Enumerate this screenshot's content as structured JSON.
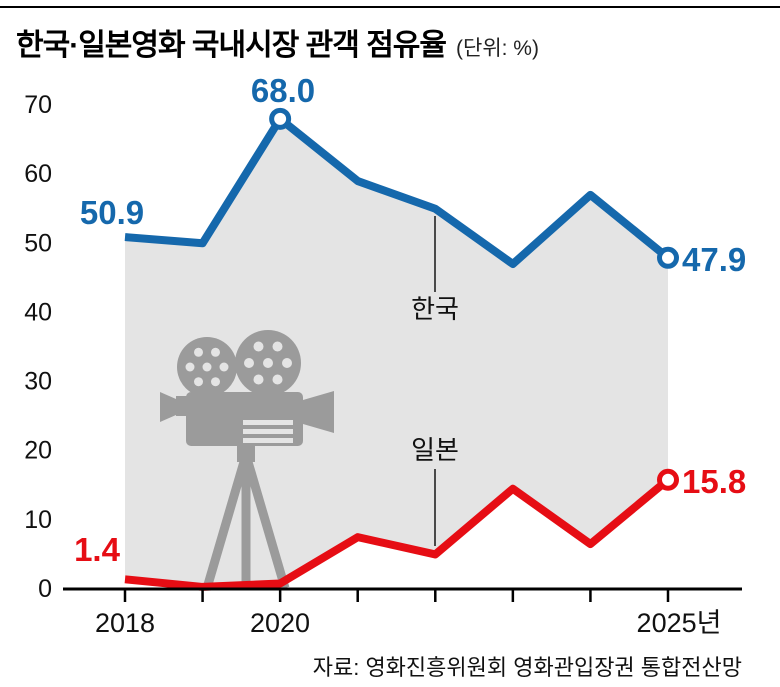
{
  "header": {
    "title": "한국·일본영화 국내시장 관객 점유율",
    "unit": "(단위: %)"
  },
  "footer": {
    "source": "자료: 영화진흥위원회 영화관입장권 통합전산망"
  },
  "icons": {
    "camera": "movie-camera-icon"
  },
  "colors": {
    "korea_blue": "#1568ac",
    "japan_red": "#e60d14",
    "fill_gray": "#e4e4e4",
    "icon_gray": "#9b9b9b",
    "axis_black": "#000000"
  },
  "chart_data": {
    "type": "line",
    "title": "한국·일본영화 국내시장 관객 점유율",
    "unit_label": "(단위: %)",
    "x": [
      2018,
      2019,
      2020,
      2021,
      2022,
      2023,
      2024,
      2025
    ],
    "x_tick_labels": {
      "2018": "2018",
      "2020": "2020",
      "2025": "2025년"
    },
    "ylim": [
      0,
      70
    ],
    "y_ticks": [
      0,
      10,
      20,
      30,
      40,
      50,
      60,
      70
    ],
    "grid": false,
    "legend": "none",
    "fill_between_series": true,
    "fill_color": "#e4e4e4",
    "series": [
      {
        "name": "한국",
        "color": "#1568ac",
        "values": [
          50.9,
          50.0,
          68.0,
          59.0,
          55.0,
          47.0,
          57.0,
          47.9
        ]
      },
      {
        "name": "일본",
        "color": "#e60d14",
        "values": [
          1.4,
          0.3,
          0.8,
          7.5,
          5.0,
          14.5,
          6.5,
          15.8
        ]
      }
    ],
    "point_labels": [
      {
        "series": "한국",
        "x": 2018,
        "text": "50.9",
        "marker": false
      },
      {
        "series": "한국",
        "x": 2020,
        "text": "68.0",
        "marker": true
      },
      {
        "series": "한국",
        "x": 2025,
        "text": "47.9",
        "marker": true
      },
      {
        "series": "일본",
        "x": 2018,
        "text": "1.4",
        "marker": false
      },
      {
        "series": "일본",
        "x": 2025,
        "text": "15.8",
        "marker": true
      }
    ],
    "annotations": [
      {
        "label": "한국"
      },
      {
        "label": "일본"
      }
    ],
    "source": "자료: 영화진흥위원회 영화관입장권 통합전산망"
  }
}
